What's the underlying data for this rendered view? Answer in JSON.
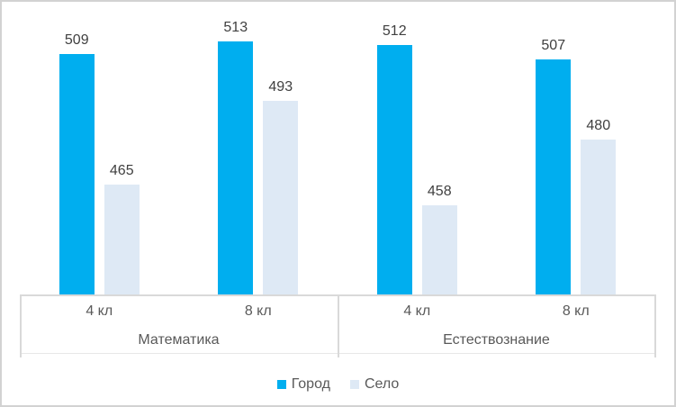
{
  "chart_data": {
    "type": "bar",
    "title": "",
    "categories": [
      "4 кл",
      "8 кл",
      "4 кл",
      "8 кл"
    ],
    "category_groups": [
      {
        "label": "Математика"
      },
      {
        "label": "Естествознание"
      }
    ],
    "series": [
      {
        "name": "Город",
        "color": "#00AEEF",
        "values": [
          509,
          513,
          512,
          507
        ]
      },
      {
        "name": "Село",
        "color": "#DEE9F5",
        "values": [
          465,
          493,
          458,
          480
        ]
      }
    ],
    "data_labels": true,
    "grid": false,
    "legend_position": "bottom",
    "value_axis_visible": false,
    "ylim": [
      428,
      530
    ]
  }
}
